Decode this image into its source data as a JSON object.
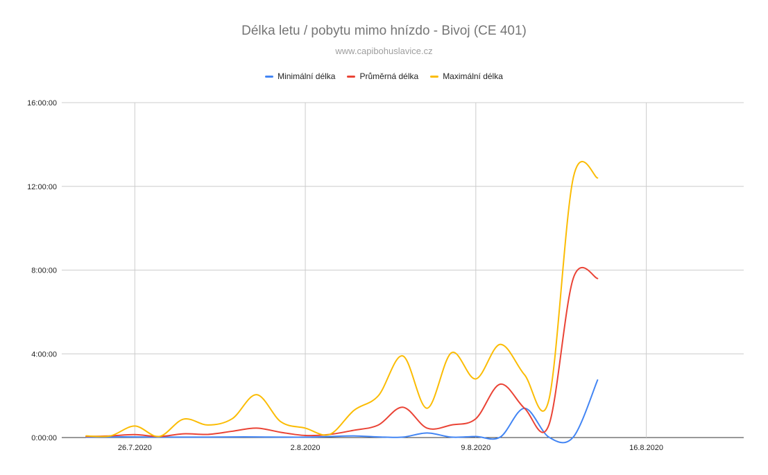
{
  "chart_data": {
    "type": "line",
    "title": "Délka letu / pobytu mimo hnízdo - Bivoj (CE 401)",
    "subtitle": "www.capibohuslavice.cz",
    "legend_position": "top",
    "grid": true,
    "y_ticks": [
      "0:00:00",
      "4:00:00",
      "8:00:00",
      "12:00:00",
      "16:00:00"
    ],
    "y_tick_values": [
      0,
      4,
      8,
      12,
      16
    ],
    "ylim": [
      0,
      16
    ],
    "x_ticks": [
      "26.7.2020",
      "2.8.2020",
      "9.8.2020",
      "16.8.2020"
    ],
    "x_tick_values": [
      "2020-07-26",
      "2020-08-02",
      "2020-08-09",
      "2020-08-16"
    ],
    "xlim": [
      "2020-07-23",
      "2020-08-20"
    ],
    "x": [
      "2020-07-24",
      "2020-07-25",
      "2020-07-26",
      "2020-07-27",
      "2020-07-28",
      "2020-07-29",
      "2020-07-30",
      "2020-07-31",
      "2020-08-01",
      "2020-08-02",
      "2020-08-03",
      "2020-08-04",
      "2020-08-05",
      "2020-08-06",
      "2020-08-07",
      "2020-08-08",
      "2020-08-09",
      "2020-08-10",
      "2020-08-11",
      "2020-08-12",
      "2020-08-13",
      "2020-08-14"
    ],
    "series": [
      {
        "name": "Minimální délka",
        "color": "#4285f4",
        "values": [
          0.02,
          0.03,
          0.03,
          0.02,
          0.02,
          0.02,
          0.03,
          0.03,
          0.02,
          0.02,
          0.05,
          0.08,
          0.03,
          0.02,
          0.22,
          0.02,
          0.05,
          0.02,
          1.4,
          0.02,
          0.02,
          2.75
        ]
      },
      {
        "name": "Průměrná délka",
        "color": "#ea4335",
        "values": [
          0.05,
          0.08,
          0.14,
          0.05,
          0.18,
          0.15,
          0.3,
          0.45,
          0.25,
          0.1,
          0.15,
          0.35,
          0.6,
          1.45,
          0.45,
          0.6,
          0.9,
          2.55,
          1.4,
          0.6,
          7.6,
          7.6
        ]
      },
      {
        "name": "Maximální délka",
        "color": "#fbbc04",
        "values": [
          0.08,
          0.08,
          0.55,
          0.05,
          0.88,
          0.6,
          0.9,
          2.05,
          0.75,
          0.45,
          0.15,
          1.3,
          2.0,
          3.9,
          1.4,
          4.05,
          2.8,
          4.45,
          3.0,
          1.8,
          12.4,
          12.4
        ]
      }
    ]
  }
}
